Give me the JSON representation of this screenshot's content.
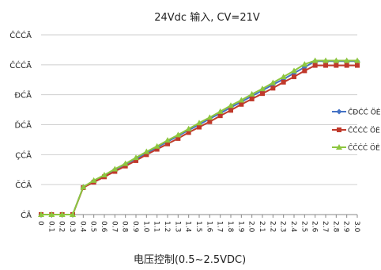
{
  "chart_data": {
    "type": "line",
    "title": "24Vdc 输入, CV=21V",
    "xlabel": "电压控制(0.5~2.5VDC)",
    "ylabel": "",
    "ylim": [
      0,
      30
    ],
    "ytick_labels": [
      "ĆÃ",
      "ČĆÃ",
      "ÇĆÃ",
      "ĎĆÃ",
      "ĐĆÃ",
      "ĈĆĆÃ",
      "ĈĈĆÃ"
    ],
    "yticks": [
      0,
      5,
      10,
      15,
      20,
      25,
      30
    ],
    "x": [
      "0",
      "0.1",
      "0.2",
      "0.3",
      "0.4",
      "0.5",
      "0.6",
      "0.7",
      "0.8",
      "0.9",
      "1.0",
      "1.1",
      "1.2",
      "1.3",
      "1.4",
      "1.5",
      "1.6",
      "1.7",
      "1.8",
      "1.9",
      "2.0",
      "2.1",
      "2.2",
      "2.3",
      "2.4",
      "2.5",
      "2.6",
      "2.7",
      "2.8",
      "2.9",
      "3.0"
    ],
    "series": [
      {
        "name": "ĈĐĆĆ ÖĖ",
        "color": "#4472c4",
        "marker": "diamond",
        "values": [
          0,
          0,
          0,
          0,
          4.6,
          5.6,
          6.5,
          7.5,
          8.4,
          9.3,
          10.3,
          11.2,
          12.2,
          13.1,
          14.1,
          15.0,
          16.0,
          16.9,
          17.9,
          18.8,
          19.8,
          20.7,
          21.7,
          22.6,
          23.6,
          24.6,
          25.6,
          25.6,
          25.6,
          25.6,
          25.6
        ]
      },
      {
        "name": "ĈĈĆĆ ÖĖ",
        "color": "#c0392b",
        "marker": "square",
        "values": [
          0,
          0,
          0,
          0,
          4.5,
          5.4,
          6.3,
          7.2,
          8.1,
          9.0,
          10.0,
          10.9,
          11.8,
          12.7,
          13.7,
          14.6,
          15.5,
          16.5,
          17.4,
          18.4,
          19.3,
          20.2,
          21.1,
          22.1,
          23.0,
          24.0,
          24.9,
          24.9,
          24.9,
          24.9,
          24.9
        ]
      },
      {
        "name": "ĈČĆĆ ÖĖ",
        "color": "#8dc63f",
        "marker": "triangle",
        "values": [
          0,
          0,
          0,
          0,
          4.6,
          5.7,
          6.6,
          7.6,
          8.5,
          9.5,
          10.5,
          11.4,
          12.4,
          13.3,
          14.3,
          15.3,
          16.2,
          17.2,
          18.2,
          19.1,
          20.1,
          21.0,
          22.0,
          23.0,
          24.0,
          25.1,
          25.7,
          25.7,
          25.7,
          25.7,
          25.7
        ]
      }
    ],
    "legend_position": "right",
    "grid": true
  }
}
